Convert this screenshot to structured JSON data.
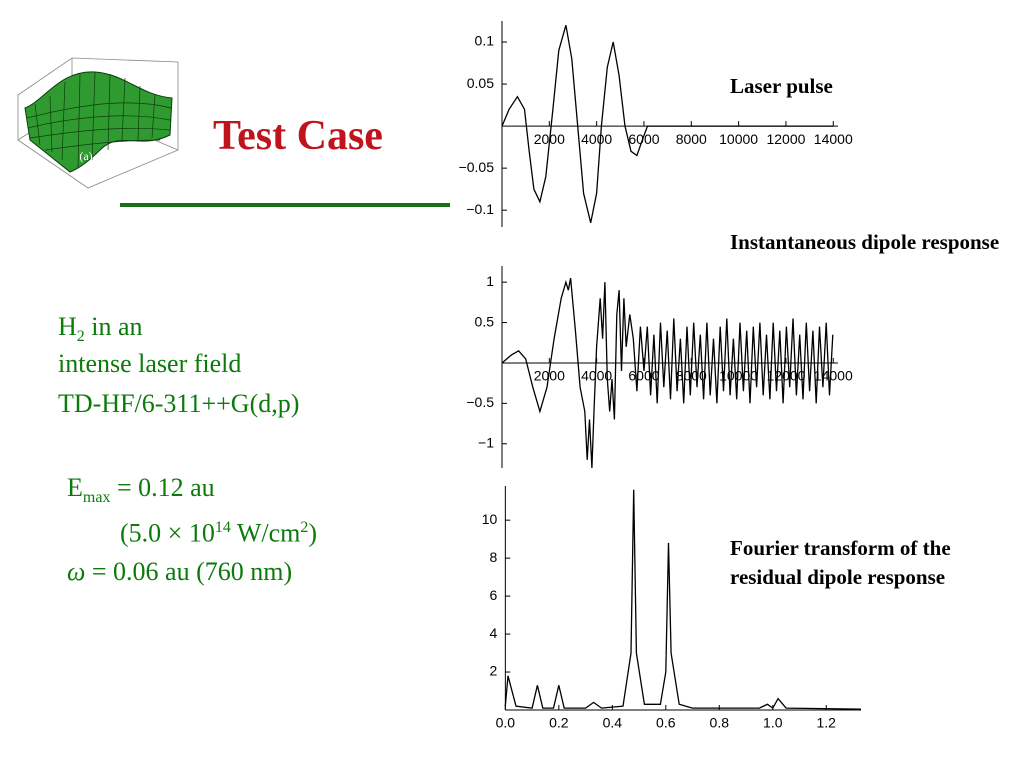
{
  "title": "Test Case",
  "figure_label": "(a)",
  "body": {
    "h2": {
      "text": "H",
      "sub": "2",
      "rest": " in an"
    },
    "line2": "intense laser field",
    "line3": "TD-HF/6-311++G(d,p)",
    "emax": {
      "text": "E",
      "sub": "max",
      "rest": " = 0.12 au"
    },
    "intensity": {
      "a": "(5.0 × 10",
      "sup1": "14",
      "b": " W/cm",
      "sup2": "2",
      "c": ")"
    },
    "omega": {
      "symbol": "ω",
      "rest": " = 0.06 au (760 nm)"
    }
  },
  "captions": [
    "Laser pulse",
    "Instantaneous dipole response",
    "Fourier transform of the residual dipole response"
  ],
  "chart_data": [
    {
      "type": "line",
      "color": "#000000",
      "x": [
        0,
        300,
        650,
        950,
        1150,
        1350,
        1600,
        1850,
        2150,
        2400,
        2700,
        2950,
        3200,
        3450,
        3750,
        4000,
        4200,
        4450,
        4700,
        4950,
        5200,
        5450,
        5700,
        5950,
        6150,
        14000
      ],
      "values": [
        0,
        0.02,
        0.035,
        0.02,
        -0.03,
        -0.075,
        -0.09,
        -0.06,
        0.02,
        0.09,
        0.12,
        0.08,
        0,
        -0.08,
        -0.115,
        -0.08,
        0,
        0.07,
        0.1,
        0.06,
        0,
        -0.03,
        -0.035,
        -0.015,
        0,
        0
      ],
      "xlim": [
        0,
        14200
      ],
      "ylim": [
        -0.12,
        0.125
      ],
      "xticks": [
        2000,
        4000,
        6000,
        8000,
        10000,
        12000,
        14000
      ],
      "yticks": [
        0.1,
        0.05,
        {
          "value": -0.05,
          "label": "−0.05"
        },
        {
          "value": -0.1,
          "label": "−0.1"
        }
      ]
    },
    {
      "type": "line",
      "color": "#000000",
      "x": [
        0,
        400,
        700,
        1000,
        1300,
        1600,
        1900,
        2200,
        2500,
        2700,
        2800,
        2900,
        3100,
        3300,
        3500,
        3600,
        3700,
        3800,
        3900,
        4000,
        4150,
        4250,
        4350,
        4450,
        4550,
        4650,
        4750,
        4850,
        4950,
        5050,
        5150,
        5250,
        5400,
        5550,
        5700,
        5850,
        6000,
        6140,
        6280,
        6420,
        6560,
        6700,
        6840,
        6980,
        7120,
        7260,
        7400,
        7540,
        7680,
        7820,
        7960,
        8100,
        8240,
        8380,
        8520,
        8660,
        8800,
        8940,
        9080,
        9220,
        9360,
        9500,
        9640,
        9780,
        9920,
        10060,
        10200,
        10340,
        10480,
        10620,
        10760,
        10900,
        11040,
        11180,
        11320,
        11460,
        11600,
        11740,
        11880,
        12020,
        12160,
        12300,
        12440,
        12580,
        12720,
        12860,
        13000,
        13140,
        13280,
        13420,
        13560,
        13700,
        13840,
        13980
      ],
      "values": [
        0,
        0.1,
        0.15,
        0.05,
        -0.3,
        -0.6,
        -0.3,
        0.3,
        0.8,
        1.0,
        0.9,
        1.05,
        0.4,
        -0.3,
        -0.6,
        -1.2,
        -0.7,
        -1.3,
        -0.5,
        0.2,
        0.8,
        0.3,
        1.0,
        -0.2,
        -0.6,
        -0.2,
        -0.7,
        0.6,
        0.9,
        -0.1,
        0.8,
        0.2,
        0.6,
        0.3,
        -0.35,
        0.45,
        -0.1,
        0.45,
        -0.4,
        0.35,
        -0.5,
        0.5,
        -0.3,
        0.4,
        -0.45,
        0.55,
        -0.35,
        0.3,
        -0.5,
        0.45,
        -0.4,
        0.5,
        -0.3,
        0.35,
        -0.45,
        0.5,
        -0.4,
        0.3,
        -0.5,
        0.45,
        -0.35,
        0.55,
        -0.4,
        0.3,
        -0.45,
        0.5,
        -0.35,
        0.4,
        -0.5,
        0.45,
        -0.3,
        0.5,
        -0.4,
        0.35,
        -0.45,
        0.5,
        -0.35,
        0.4,
        -0.5,
        0.45,
        -0.3,
        0.55,
        -0.4,
        0.35,
        -0.45,
        0.5,
        -0.35,
        0.4,
        -0.5,
        0.45,
        -0.3,
        0.5,
        -0.4,
        0.35
      ],
      "xlim": [
        0,
        14200
      ],
      "ylim": [
        -1.3,
        1.2
      ],
      "xticks": [
        2000,
        4000,
        6000,
        8000,
        10000,
        12000,
        14000
      ],
      "yticks": [
        1,
        0.5,
        {
          "value": -0.5,
          "label": "−0.5"
        },
        {
          "value": -1,
          "label": "−1"
        }
      ]
    },
    {
      "type": "line",
      "color": "#000000",
      "x": [
        0,
        0.01,
        0.04,
        0.1,
        0.12,
        0.14,
        0.18,
        0.2,
        0.22,
        0.3,
        0.33,
        0.36,
        0.44,
        0.47,
        0.48,
        0.49,
        0.52,
        0.58,
        0.6,
        0.61,
        0.62,
        0.65,
        0.7,
        0.95,
        0.98,
        1.0,
        1.02,
        1.05,
        1.33
      ],
      "values": [
        0.2,
        1.8,
        0.2,
        0.1,
        1.3,
        0.1,
        0.1,
        1.3,
        0.1,
        0.1,
        0.4,
        0.1,
        0.2,
        3,
        11.6,
        3,
        0.3,
        0.3,
        2,
        8.8,
        3,
        0.3,
        0.1,
        0.1,
        0.3,
        0.1,
        0.6,
        0.1,
        0.05
      ],
      "xlim": [
        -0.02,
        1.33
      ],
      "ylim": [
        0,
        11.8
      ],
      "xticks": [
        {
          "value": 0,
          "label": "0.0"
        },
        0.2,
        0.4,
        0.6,
        0.8,
        {
          "value": 1,
          "label": "1.0"
        },
        1.2
      ],
      "yticks": [
        2,
        4,
        6,
        8,
        10
      ]
    }
  ]
}
